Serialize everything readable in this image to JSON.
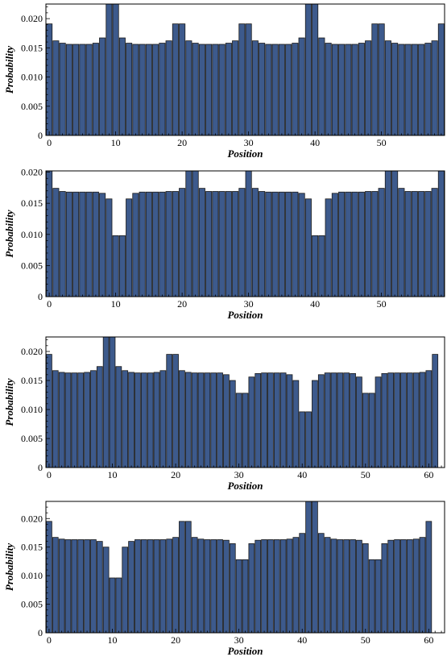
{
  "colors": {
    "bar_fill": "#3d5a8c",
    "bar_stroke": "#1a1a1a",
    "frame": "#000000",
    "background": "#ffffff"
  },
  "chart_data": [
    {
      "type": "bar",
      "xlabel": "Position",
      "ylabel": "Probability",
      "x_start": 0,
      "xlim": [
        -0.5,
        59.5
      ],
      "ylim": [
        0,
        0.0225
      ],
      "xticks": [
        0,
        10,
        20,
        30,
        40,
        50
      ],
      "yticks": [
        0,
        0.005,
        0.01,
        0.015,
        0.02
      ],
      "ytick_labels": [
        "0",
        "0.005",
        "0.010",
        "0.015",
        "0.020"
      ],
      "grid": false,
      "values": [
        0.0191,
        0.0162,
        0.0158,
        0.0156,
        0.0156,
        0.0156,
        0.0156,
        0.0158,
        0.0167,
        0.0225,
        0.0225,
        0.0167,
        0.0158,
        0.0156,
        0.0156,
        0.0156,
        0.0156,
        0.0158,
        0.0162,
        0.0191,
        0.0191,
        0.0162,
        0.0158,
        0.0156,
        0.0156,
        0.0156,
        0.0156,
        0.0158,
        0.0162,
        0.0191,
        0.0191,
        0.0162,
        0.0158,
        0.0156,
        0.0156,
        0.0156,
        0.0156,
        0.0158,
        0.0167,
        0.0225,
        0.0225,
        0.0167,
        0.0158,
        0.0156,
        0.0156,
        0.0156,
        0.0156,
        0.0158,
        0.0162,
        0.0191,
        0.0191,
        0.0162,
        0.0158,
        0.0156,
        0.0156,
        0.0156,
        0.0156,
        0.0158,
        0.0162,
        0.0191
      ]
    },
    {
      "type": "bar",
      "xlabel": "Position",
      "ylabel": "Probability",
      "x_start": 0,
      "xlim": [
        -0.5,
        59.5
      ],
      "ylim": [
        0,
        0.0202
      ],
      "xticks": [
        0,
        10,
        20,
        30,
        40,
        50
      ],
      "yticks": [
        0,
        0.005,
        0.01,
        0.015,
        0.02
      ],
      "ytick_labels": [
        "0",
        "0.005",
        "0.010",
        "0.015",
        "0.020"
      ],
      "grid": false,
      "values": [
        0.0202,
        0.0174,
        0.0169,
        0.0168,
        0.0168,
        0.0168,
        0.0168,
        0.0168,
        0.0166,
        0.0157,
        0.0098,
        0.0098,
        0.0157,
        0.0166,
        0.0168,
        0.0168,
        0.0168,
        0.0168,
        0.0169,
        0.0169,
        0.0174,
        0.0202,
        0.0202,
        0.0174,
        0.0169,
        0.0169,
        0.0169,
        0.0169,
        0.0169,
        0.0174,
        0.0202,
        0.0174,
        0.0169,
        0.0168,
        0.0168,
        0.0168,
        0.0168,
        0.0168,
        0.0166,
        0.0157,
        0.0098,
        0.0098,
        0.0157,
        0.0166,
        0.0168,
        0.0168,
        0.0168,
        0.0168,
        0.0169,
        0.0169,
        0.0174,
        0.0202,
        0.0202,
        0.0174,
        0.0169,
        0.0169,
        0.0169,
        0.0169,
        0.0174,
        0.0202
      ]
    },
    {
      "type": "bar",
      "xlabel": "Position",
      "ylabel": "Probability",
      "x_start": 0,
      "xlim": [
        -0.5,
        62.5
      ],
      "ylim": [
        0,
        0.0225
      ],
      "xticks": [
        0,
        10,
        20,
        30,
        40,
        50,
        60
      ],
      "yticks": [
        0,
        0.005,
        0.01,
        0.015,
        0.02
      ],
      "ytick_labels": [
        "0",
        "0.005",
        "0.010",
        "0.015",
        "0.020"
      ],
      "grid": false,
      "values": [
        0.0195,
        0.0167,
        0.0164,
        0.0163,
        0.0163,
        0.0163,
        0.0164,
        0.0167,
        0.0174,
        0.0225,
        0.0225,
        0.0174,
        0.0167,
        0.0164,
        0.0163,
        0.0163,
        0.0163,
        0.0164,
        0.0167,
        0.0195,
        0.0195,
        0.0167,
        0.0164,
        0.0163,
        0.0163,
        0.0163,
        0.0163,
        0.0163,
        0.016,
        0.015,
        0.0128,
        0.0128,
        0.0156,
        0.0162,
        0.0163,
        0.0163,
        0.0163,
        0.0163,
        0.016,
        0.015,
        0.0096,
        0.0096,
        0.015,
        0.016,
        0.0163,
        0.0163,
        0.0163,
        0.0163,
        0.0162,
        0.0156,
        0.0128,
        0.0128,
        0.0156,
        0.0162,
        0.0163,
        0.0163,
        0.0163,
        0.0163,
        0.0163,
        0.0164,
        0.0167,
        0.0195
      ]
    },
    {
      "type": "bar",
      "xlabel": "Position",
      "ylabel": "Probability",
      "x_start": 0,
      "xlim": [
        -0.5,
        62.5
      ],
      "ylim": [
        0,
        0.023
      ],
      "xticks": [
        0,
        10,
        20,
        30,
        40,
        50,
        60
      ],
      "yticks": [
        0,
        0.005,
        0.01,
        0.015,
        0.02
      ],
      "ytick_labels": [
        "0",
        "0.005",
        "0.010",
        "0.015",
        "0.020"
      ],
      "grid": false,
      "values": [
        0.0195,
        0.0167,
        0.0164,
        0.0163,
        0.0163,
        0.0163,
        0.0163,
        0.0163,
        0.016,
        0.015,
        0.0096,
        0.0096,
        0.015,
        0.016,
        0.0163,
        0.0163,
        0.0163,
        0.0163,
        0.0163,
        0.0164,
        0.0167,
        0.0195,
        0.0195,
        0.0167,
        0.0164,
        0.0163,
        0.0163,
        0.0163,
        0.0162,
        0.0156,
        0.0128,
        0.0128,
        0.0156,
        0.0162,
        0.0163,
        0.0163,
        0.0163,
        0.0163,
        0.0164,
        0.0167,
        0.0174,
        0.023,
        0.023,
        0.0174,
        0.0167,
        0.0164,
        0.0163,
        0.0163,
        0.0163,
        0.0162,
        0.0156,
        0.0128,
        0.0128,
        0.0156,
        0.0162,
        0.0163,
        0.0163,
        0.0163,
        0.0164,
        0.0167,
        0.0195
      ]
    }
  ]
}
